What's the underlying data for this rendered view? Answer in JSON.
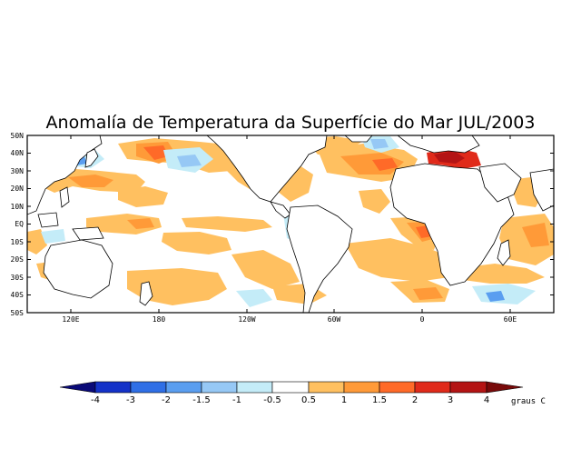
{
  "title": "Anomalía de Temperatura da Superfície do Mar JUL/2003",
  "lat_labels": [
    "50N",
    "40N",
    "30N",
    "20N",
    "10N",
    "EQ",
    "10S",
    "20S",
    "30S",
    "40S",
    "50S"
  ],
  "lon_labels": [
    "120E",
    "180",
    "120W",
    "60W",
    "0",
    "60E"
  ],
  "colorbar": {
    "ticks": [
      "-4",
      "-3",
      "-2",
      "-1.5",
      "-1",
      "-0.5",
      "0.5",
      "1",
      "1.5",
      "2",
      "3",
      "4"
    ],
    "unit": "graus C",
    "colors": {
      "lt_m4": "#0a0a78",
      "m4_m3": "#1432c8",
      "m3_m2": "#2f6fe6",
      "m2_m15": "#5a9ef0",
      "m15_m1": "#96c8f5",
      "m1_m05": "#c4ecf8",
      "m05_05": "#ffffff",
      "p05_1": "#ffc060",
      "p1_15": "#ff9a38",
      "p15_2": "#ff6a28",
      "p2_3": "#e02a1a",
      "p3_4": "#b41414",
      "gt_4": "#780a0a"
    }
  }
}
